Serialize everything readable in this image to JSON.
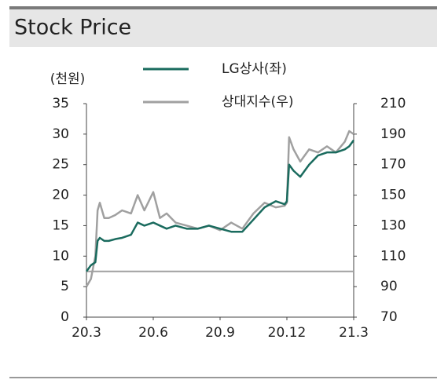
{
  "header": {
    "title": "Stock Price"
  },
  "chart_data": {
    "type": "line",
    "ylabel": "(천원)",
    "x": [
      0,
      0.2,
      0.4,
      0.5,
      0.6,
      0.8,
      1.0,
      1.3,
      1.6,
      2.0,
      2.3,
      2.6,
      3.0,
      3.3,
      3.6,
      4.0,
      4.5,
      5.0,
      5.5,
      6.0,
      6.5,
      7.0,
      7.5,
      8.0,
      8.5,
      8.9,
      9.0,
      9.1,
      9.3,
      9.6,
      10.0,
      10.4,
      10.8,
      11.2,
      11.6,
      11.8,
      12.0
    ],
    "series": [
      {
        "name": "LG상사(좌)",
        "color": "#1a6b5e",
        "axis": "y",
        "values": [
          7.5,
          8.5,
          9,
          12.5,
          13,
          12.5,
          12.5,
          12.8,
          13,
          13.5,
          15.5,
          15,
          15.5,
          15,
          14.5,
          15,
          14.5,
          14.5,
          15,
          14.5,
          14,
          14,
          16,
          18,
          19,
          18.5,
          19,
          25,
          24,
          23,
          25,
          26.5,
          27,
          27,
          27.5,
          28,
          29
        ]
      },
      {
        "name": "상대지수(우)",
        "color": "#a0a0a0",
        "axis": "y2",
        "values": [
          90,
          95,
          110,
          140,
          145,
          135,
          135,
          137,
          140,
          138,
          150,
          140,
          152,
          135,
          138,
          132,
          130,
          128,
          130,
          127,
          132,
          128,
          138,
          145,
          142,
          143,
          145,
          188,
          180,
          172,
          180,
          178,
          182,
          178,
          185,
          192,
          190
        ]
      }
    ],
    "reference_lines": [
      {
        "value": 100,
        "axis": "y2",
        "color": "#a0a0a0"
      }
    ],
    "xlim": [
      0,
      12
    ],
    "xticks": [
      {
        "value": 0,
        "label": "20.3"
      },
      {
        "value": 3,
        "label": "20.6"
      },
      {
        "value": 6,
        "label": "20.9"
      },
      {
        "value": 9,
        "label": "20.12"
      },
      {
        "value": 12,
        "label": "21.3"
      }
    ],
    "ylim": [
      0,
      35
    ],
    "yticks": [
      0,
      5,
      10,
      15,
      20,
      25,
      30,
      35
    ],
    "y2lim": [
      70,
      210
    ],
    "y2ticks": [
      70,
      90,
      110,
      130,
      150,
      170,
      190,
      210
    ],
    "grid": false
  }
}
